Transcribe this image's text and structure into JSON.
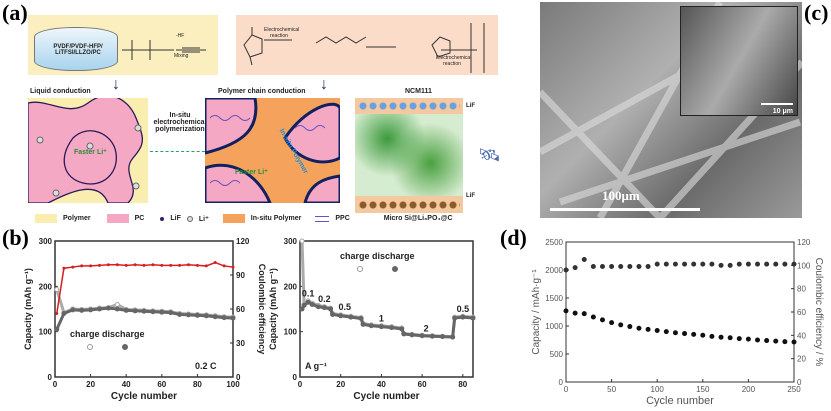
{
  "panels": {
    "a": "(a)",
    "b": "(b)",
    "c": "(c)",
    "d": "(d)"
  },
  "schematic": {
    "vial_label": "PVDF/PVDF-HFP/ LiTFSI/LLZO/PC",
    "minus_hf": "-HF",
    "mixing": "Mixing",
    "electrochem1": "Electrochemical reaction",
    "electrochem2": "Electrochemical reaction",
    "liquid_conduction": "Liquid conduction",
    "polymer_chain_conduction": "Polymer chain conduction",
    "ncm": "NCM111",
    "insitu_arrow": "In-situ electrochemical polymerization",
    "faster_li_1": "Faster Li⁺",
    "faster_li_2": "Faster Li⁺",
    "insitu_polymer": "In-situ Polymer",
    "lif_top": "LiF",
    "lif_bottom": "LiF",
    "anode": "Micro Si@Li₃PO₄@C",
    "legend": [
      "Polymer",
      "PC",
      "LiF",
      "Li⁺",
      "In-situ Polymer",
      "PPC"
    ],
    "colors": {
      "polymer": "#f9eeb0",
      "pc": "#f5a8c4",
      "insitu": "#f5a35c",
      "ppc": "#6a4fc0",
      "lif": "#3a1d6e",
      "green": "#3c9a3c"
    }
  },
  "sem": {
    "scale_main": "100μm",
    "scale_inset": "10 μm"
  },
  "chart_data": [
    {
      "id": "b1",
      "type": "line",
      "xlabel": "Cycle number",
      "ylabel": "Capacity (mAh g⁻¹)",
      "ylabel_right": "Coulombic efficiency",
      "xlim": [
        0,
        100
      ],
      "ylim": [
        0,
        300
      ],
      "ylim_right": [
        0,
        120
      ],
      "xticks": [
        0,
        20,
        40,
        60,
        80,
        100
      ],
      "yticks": [
        0,
        100,
        200,
        300
      ],
      "yticks_right": [
        0,
        30,
        60,
        90,
        120
      ],
      "legend": {
        "title": "charge discharge",
        "placement": "bottom-left"
      },
      "annotation": "0.2 C",
      "x": [
        1,
        5,
        10,
        15,
        20,
        25,
        30,
        35,
        40,
        45,
        50,
        55,
        60,
        65,
        70,
        75,
        80,
        85,
        90,
        95,
        100
      ],
      "series": [
        {
          "name": "charge",
          "axis": "left",
          "color": "#aaaaaa",
          "values": [
            193,
            142,
            150,
            149,
            150,
            152,
            153,
            160,
            149,
            148,
            147,
            146,
            145,
            144,
            140,
            139,
            138,
            137,
            135,
            133,
            132
          ]
        },
        {
          "name": "discharge",
          "axis": "left",
          "color": "#666666",
          "values": [
            105,
            140,
            148,
            147,
            148,
            150,
            152,
            150,
            147,
            146,
            145,
            144,
            143,
            142,
            138,
            137,
            136,
            135,
            133,
            131,
            130
          ]
        },
        {
          "axis": "right",
          "color": "#d42020",
          "values": [
            56,
            96,
            97,
            98,
            98,
            98.5,
            99,
            99,
            98.5,
            99,
            98.5,
            99,
            98.5,
            98.5,
            98.5,
            99,
            98.5,
            98,
            101,
            98,
            97
          ]
        }
      ]
    },
    {
      "id": "b2",
      "type": "line",
      "xlabel": "Cycle number",
      "ylabel": "Capacity (mAh g⁻¹)",
      "xlim": [
        0,
        85
      ],
      "ylim": [
        0,
        300
      ],
      "xticks": [
        0,
        20,
        40,
        60,
        80
      ],
      "yticks": [
        0,
        100,
        200,
        300
      ],
      "legend": {
        "title": "charge discharge",
        "placement": "top"
      },
      "annotation": "A g⁻¹",
      "rate_labels": [
        {
          "x": 4,
          "y": 178,
          "text": "0.1"
        },
        {
          "x": 12,
          "y": 165,
          "text": "0.2"
        },
        {
          "x": 22,
          "y": 148,
          "text": "0.5"
        },
        {
          "x": 40,
          "y": 122,
          "text": "1"
        },
        {
          "x": 62,
          "y": 100,
          "text": "2"
        },
        {
          "x": 80,
          "y": 143,
          "text": "0.5"
        }
      ],
      "x": [
        1,
        2,
        4,
        6,
        9,
        12,
        15,
        16,
        20,
        25,
        30,
        31,
        35,
        40,
        45,
        50,
        51,
        55,
        60,
        65,
        70,
        75,
        76,
        80,
        85
      ],
      "series": [
        {
          "name": "charge",
          "color": "#aaaaaa",
          "values": [
            300,
            160,
            168,
            163,
            158,
            155,
            152,
            140,
            137,
            134,
            131,
            118,
            115,
            113,
            111,
            108,
            96,
            94,
            92,
            91,
            90,
            89,
            132,
            134,
            132
          ]
        },
        {
          "name": "discharge",
          "color": "#666666",
          "values": [
            150,
            158,
            165,
            160,
            155,
            153,
            150,
            138,
            135,
            132,
            129,
            116,
            113,
            111,
            109,
            106,
            95,
            93,
            91,
            90,
            89,
            88,
            130,
            132,
            130
          ]
        }
      ]
    },
    {
      "id": "d",
      "type": "scatter",
      "xlabel": "Cycle number",
      "ylabel": "Capacity / mAh·g⁻¹",
      "ylabel_right": "Coulombic efficiency / %",
      "xlim": [
        0,
        250
      ],
      "ylim": [
        0,
        2500
      ],
      "ylim_right": [
        0,
        120
      ],
      "xticks": [
        0,
        50,
        100,
        150,
        200,
        250
      ],
      "yticks": [
        0,
        500,
        1000,
        1500,
        2000,
        2500
      ],
      "yticks_right": [
        0,
        20,
        40,
        60,
        80,
        100,
        120
      ],
      "x": [
        0,
        10,
        20,
        30,
        40,
        50,
        60,
        70,
        80,
        90,
        100,
        110,
        120,
        130,
        140,
        150,
        160,
        170,
        180,
        190,
        200,
        210,
        220,
        230,
        240,
        250
      ],
      "series": [
        {
          "name": "capacity",
          "axis": "left",
          "color": "#111111",
          "values": [
            1270,
            1230,
            1220,
            1160,
            1110,
            1060,
            1020,
            990,
            960,
            940,
            920,
            900,
            880,
            865,
            850,
            835,
            815,
            800,
            790,
            775,
            765,
            750,
            740,
            730,
            720,
            715
          ]
        },
        {
          "name": "coulombic efficiency",
          "axis": "right",
          "color": "#333333",
          "values": [
            96,
            98,
            105,
            99,
            99,
            99,
            99,
            99,
            99,
            99,
            101,
            101,
            101,
            101,
            101,
            101,
            101,
            100,
            100,
            101,
            101,
            101,
            101,
            101,
            101,
            101
          ]
        }
      ]
    }
  ]
}
